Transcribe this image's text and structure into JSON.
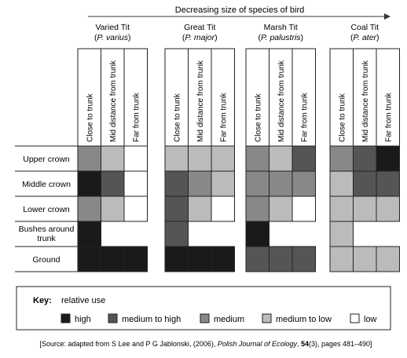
{
  "header": {
    "title": "Decreasing size of species of bird"
  },
  "columns": [
    "Close to trunk",
    "Mid distance from trunk",
    "Far from trunk"
  ],
  "rows": [
    "Upper crown",
    "Middle crown",
    "Lower crown",
    "Bushes around trunk",
    "Ground"
  ],
  "species": [
    {
      "name": "Varied Tit",
      "latin": "P. varius",
      "cells": [
        [
          "medium",
          "medium to low",
          "low"
        ],
        [
          "high",
          "medium to high",
          "low"
        ],
        [
          "medium",
          "medium to low",
          "low"
        ],
        [
          "high",
          null,
          null
        ],
        [
          "high",
          "high",
          "high"
        ]
      ]
    },
    {
      "name": "Great Tit",
      "latin": "P. major",
      "cells": [
        [
          "medium to low",
          "medium to low",
          "medium to low"
        ],
        [
          "medium to high",
          "medium",
          "medium to low"
        ],
        [
          "medium to high",
          "medium to low",
          "low"
        ],
        [
          "medium to high",
          null,
          null
        ],
        [
          "high",
          "high",
          "high"
        ]
      ]
    },
    {
      "name": "Marsh Tit",
      "latin": "P. palustris",
      "cells": [
        [
          "medium",
          "medium to low",
          "medium to high"
        ],
        [
          "medium",
          "medium",
          "medium"
        ],
        [
          "medium",
          "medium to low",
          "low"
        ],
        [
          "high",
          null,
          null
        ],
        [
          "medium to high",
          "medium to high",
          "medium to high"
        ]
      ]
    },
    {
      "name": "Coal Tit",
      "latin": "P. ater",
      "cells": [
        [
          "medium",
          "medium to high",
          "high"
        ],
        [
          "medium to low",
          "medium to high",
          "medium to high"
        ],
        [
          "medium to low",
          "medium to low",
          "medium to low"
        ],
        [
          "medium to low",
          null,
          null
        ],
        [
          "medium to low",
          "medium to low",
          "medium to low"
        ]
      ]
    }
  ],
  "key": {
    "title": "Key:",
    "subtitle": "relative use",
    "levels": [
      {
        "id": "high",
        "label": "high",
        "color": "#1a1a1a"
      },
      {
        "id": "medium to high",
        "label": "medium to high",
        "color": "#555555"
      },
      {
        "id": "medium",
        "label": "medium",
        "color": "#888888"
      },
      {
        "id": "medium to low",
        "label": "medium to low",
        "color": "#bbbbbb"
      },
      {
        "id": "low",
        "label": "low",
        "color": "#ffffff"
      }
    ]
  },
  "source": {
    "prefix": "[Source: adapted from S Lee and P G Jablonski, (2006), ",
    "journal": "Polish Journal of Ecology",
    "volume": "54",
    "suffix": "(3), pages 481–490]"
  }
}
